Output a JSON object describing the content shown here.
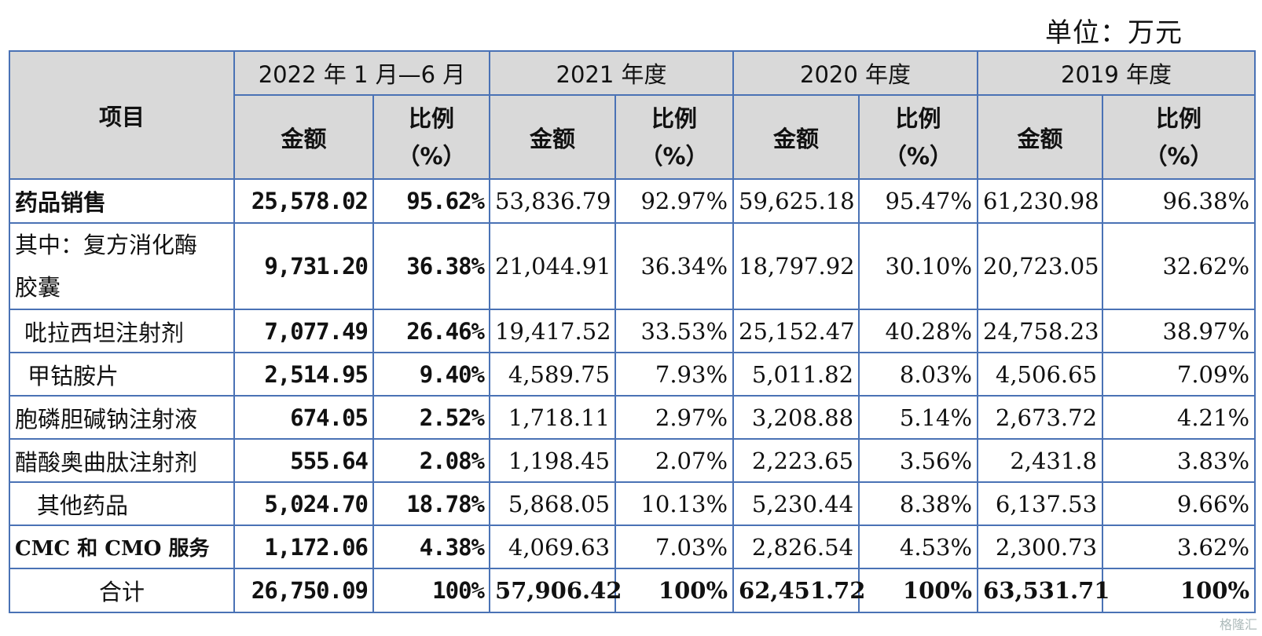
{
  "unit": "单位：万元",
  "header": {
    "item": "项目",
    "periods": [
      "2022 年 1 月—6 月",
      "2021 年度",
      "2020 年度",
      "2019 年度"
    ],
    "amount": "金额",
    "ratio_line1": "比例",
    "ratio_line2": "（%）"
  },
  "rows": [
    {
      "label": "药品销售",
      "values": [
        "25,578.02",
        "95.62%",
        "53,836.79",
        "92.97%",
        "59,625.18",
        "95.47%",
        "61,230.98",
        "96.38%"
      ]
    },
    {
      "label": "其中：复方消化酶胶囊",
      "label_line1": "其中：复方消化酶",
      "label_line2": "胶囊",
      "values": [
        "9,731.20",
        "36.38%",
        "21,044.91",
        "36.34%",
        "18,797.92",
        "30.10%",
        "20,723.05",
        "32.62%"
      ]
    },
    {
      "label": "吡拉西坦注射剂",
      "values": [
        "7,077.49",
        "26.46%",
        "19,417.52",
        "33.53%",
        "25,152.47",
        "40.28%",
        "24,758.23",
        "38.97%"
      ]
    },
    {
      "label": "甲钴胺片",
      "values": [
        "2,514.95",
        "9.40%",
        "4,589.75",
        "7.93%",
        "5,011.82",
        "8.03%",
        "4,506.65",
        "7.09%"
      ]
    },
    {
      "label": "胞磷胆碱钠注射液",
      "values": [
        "674.05",
        "2.52%",
        "1,718.11",
        "2.97%",
        "3,208.88",
        "5.14%",
        "2,673.72",
        "4.21%"
      ]
    },
    {
      "label": "醋酸奥曲肽注射剂",
      "values": [
        "555.64",
        "2.08%",
        "1,198.45",
        "2.07%",
        "2,223.65",
        "3.56%",
        "2,431.8",
        "3.83%"
      ]
    },
    {
      "label": "其他药品",
      "values": [
        "5,024.70",
        "18.78%",
        "5,868.05",
        "10.13%",
        "5,230.44",
        "8.38%",
        "6,137.53",
        "9.66%"
      ]
    },
    {
      "label": "CMC 和 CMO 服务",
      "values": [
        "1,172.06",
        "4.38%",
        "4,069.63",
        "7.03%",
        "2,826.54",
        "4.53%",
        "2,300.73",
        "3.62%"
      ]
    },
    {
      "label": "合计",
      "values": [
        "26,750.09",
        "100%",
        "57,906.42",
        "100%",
        "62,451.72",
        "100%",
        "63,531.71",
        "100%"
      ]
    }
  ],
  "watermark": "格隆汇"
}
